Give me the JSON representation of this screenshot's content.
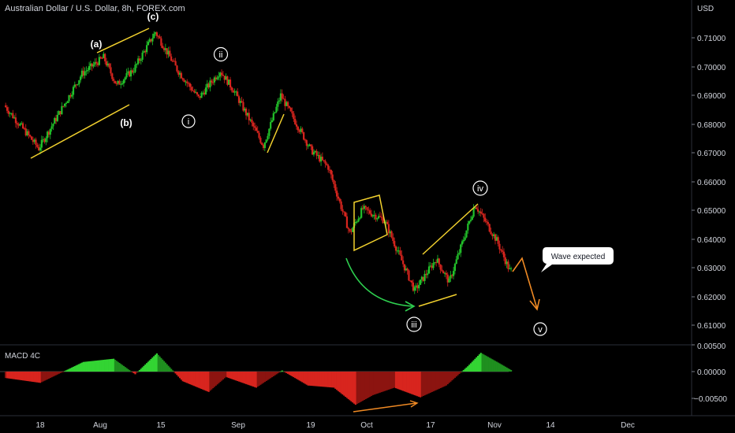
{
  "header": {
    "title": "Australian Dollar / U.S. Dollar, 8h, FOREX.com"
  },
  "price_axis": {
    "unit": "USD",
    "ticks": [
      "0.71000",
      "0.70000",
      "0.69000",
      "0.68000",
      "0.67000",
      "0.66000",
      "0.65000",
      "0.64000",
      "0.63000",
      "0.62000",
      "0.61000"
    ]
  },
  "macd_panel": {
    "title": "MACD 4C",
    "ticks": [
      "0.00500",
      "0.00000",
      "−0.00500"
    ]
  },
  "time_axis": {
    "labels": [
      "18",
      "Aug",
      "15",
      "Sep",
      "19",
      "Oct",
      "17",
      "Nov",
      "14",
      "Dec"
    ]
  },
  "annotations": {
    "wave_a": "(a)",
    "wave_b": "(b)",
    "wave_c": "(c)",
    "wave_i": "i",
    "wave_ii": "ii",
    "wave_iii": "iii",
    "wave_iv": "iv",
    "wave_v": "v",
    "callout": "Wave expected"
  },
  "colors": {
    "up": "#22c22a",
    "down": "#d8251e",
    "channel": "#f2d12e",
    "arrow_green": "#2ecf4f",
    "arrow_orange": "#f08a24",
    "macd_pos": "#2bb32b",
    "macd_neg": "#c0201a",
    "background": "#000000",
    "text": "#d1d4dc"
  },
  "chart_data": {
    "type": "candlestick",
    "title": "Australian Dollar / U.S. Dollar, 8h, FOREX.com",
    "ylabel": "USD",
    "ylim": [
      0.605,
      0.7135
    ],
    "price_path": [
      {
        "date": "Jul 10",
        "price": 0.6865
      },
      {
        "date": "Jul 18",
        "price": 0.6715
      },
      {
        "date": "Jul 28",
        "price": 0.6975
      },
      {
        "date": "Aug 2",
        "price": 0.7032
      },
      {
        "date": "Aug 5",
        "price": 0.6935
      },
      {
        "date": "Aug 9",
        "price": 0.699
      },
      {
        "date": "Aug 14",
        "price": 0.712
      },
      {
        "date": "Aug 19",
        "price": 0.699
      },
      {
        "date": "Aug 24",
        "price": 0.689
      },
      {
        "date": "Aug 29",
        "price": 0.6985
      },
      {
        "date": "Sep 1",
        "price": 0.692
      },
      {
        "date": "Sep 8",
        "price": 0.6725
      },
      {
        "date": "Sep 12",
        "price": 0.69
      },
      {
        "date": "Sep 19",
        "price": 0.671
      },
      {
        "date": "Sep 23",
        "price": 0.665
      },
      {
        "date": "Sep 28",
        "price": 0.642
      },
      {
        "date": "Oct 1",
        "price": 0.6505
      },
      {
        "date": "Oct 6",
        "price": 0.6465
      },
      {
        "date": "Oct 13",
        "price": 0.622
      },
      {
        "date": "Oct 18",
        "price": 0.633
      },
      {
        "date": "Oct 21",
        "price": 0.625
      },
      {
        "date": "Oct 27",
        "price": 0.652
      },
      {
        "date": "Nov 1",
        "price": 0.6395
      },
      {
        "date": "Nov 4",
        "price": 0.629
      }
    ],
    "macd_ylim": [
      -0.0068,
      0.0078
    ],
    "macd_path": [
      {
        "date": "Jul 10",
        "value": -0.0012
      },
      {
        "date": "Jul 18",
        "value": -0.0021
      },
      {
        "date": "Jul 28",
        "value": 0.0018
      },
      {
        "date": "Aug 4",
        "value": 0.0024
      },
      {
        "date": "Aug 9",
        "value": -0.0005
      },
      {
        "date": "Aug 14",
        "value": 0.0034
      },
      {
        "date": "Aug 20",
        "value": -0.0018
      },
      {
        "date": "Aug 26",
        "value": -0.0038
      },
      {
        "date": "Aug 30",
        "value": -0.001
      },
      {
        "date": "Sep 6",
        "value": -0.003
      },
      {
        "date": "Sep 12",
        "value": 0.0002
      },
      {
        "date": "Sep 18",
        "value": -0.0026
      },
      {
        "date": "Sep 24",
        "value": -0.003
      },
      {
        "date": "Sep 29",
        "value": -0.0062
      },
      {
        "date": "Oct 3",
        "value": -0.0044
      },
      {
        "date": "Oct 8",
        "value": -0.003
      },
      {
        "date": "Oct 14",
        "value": -0.0048
      },
      {
        "date": "Oct 20",
        "value": -0.0026
      },
      {
        "date": "Oct 25",
        "value": 0.001
      },
      {
        "date": "Oct 28",
        "value": 0.0035
      },
      {
        "date": "Nov 1",
        "value": 0.0017
      },
      {
        "date": "Nov 4",
        "value": 0.0003
      }
    ]
  }
}
